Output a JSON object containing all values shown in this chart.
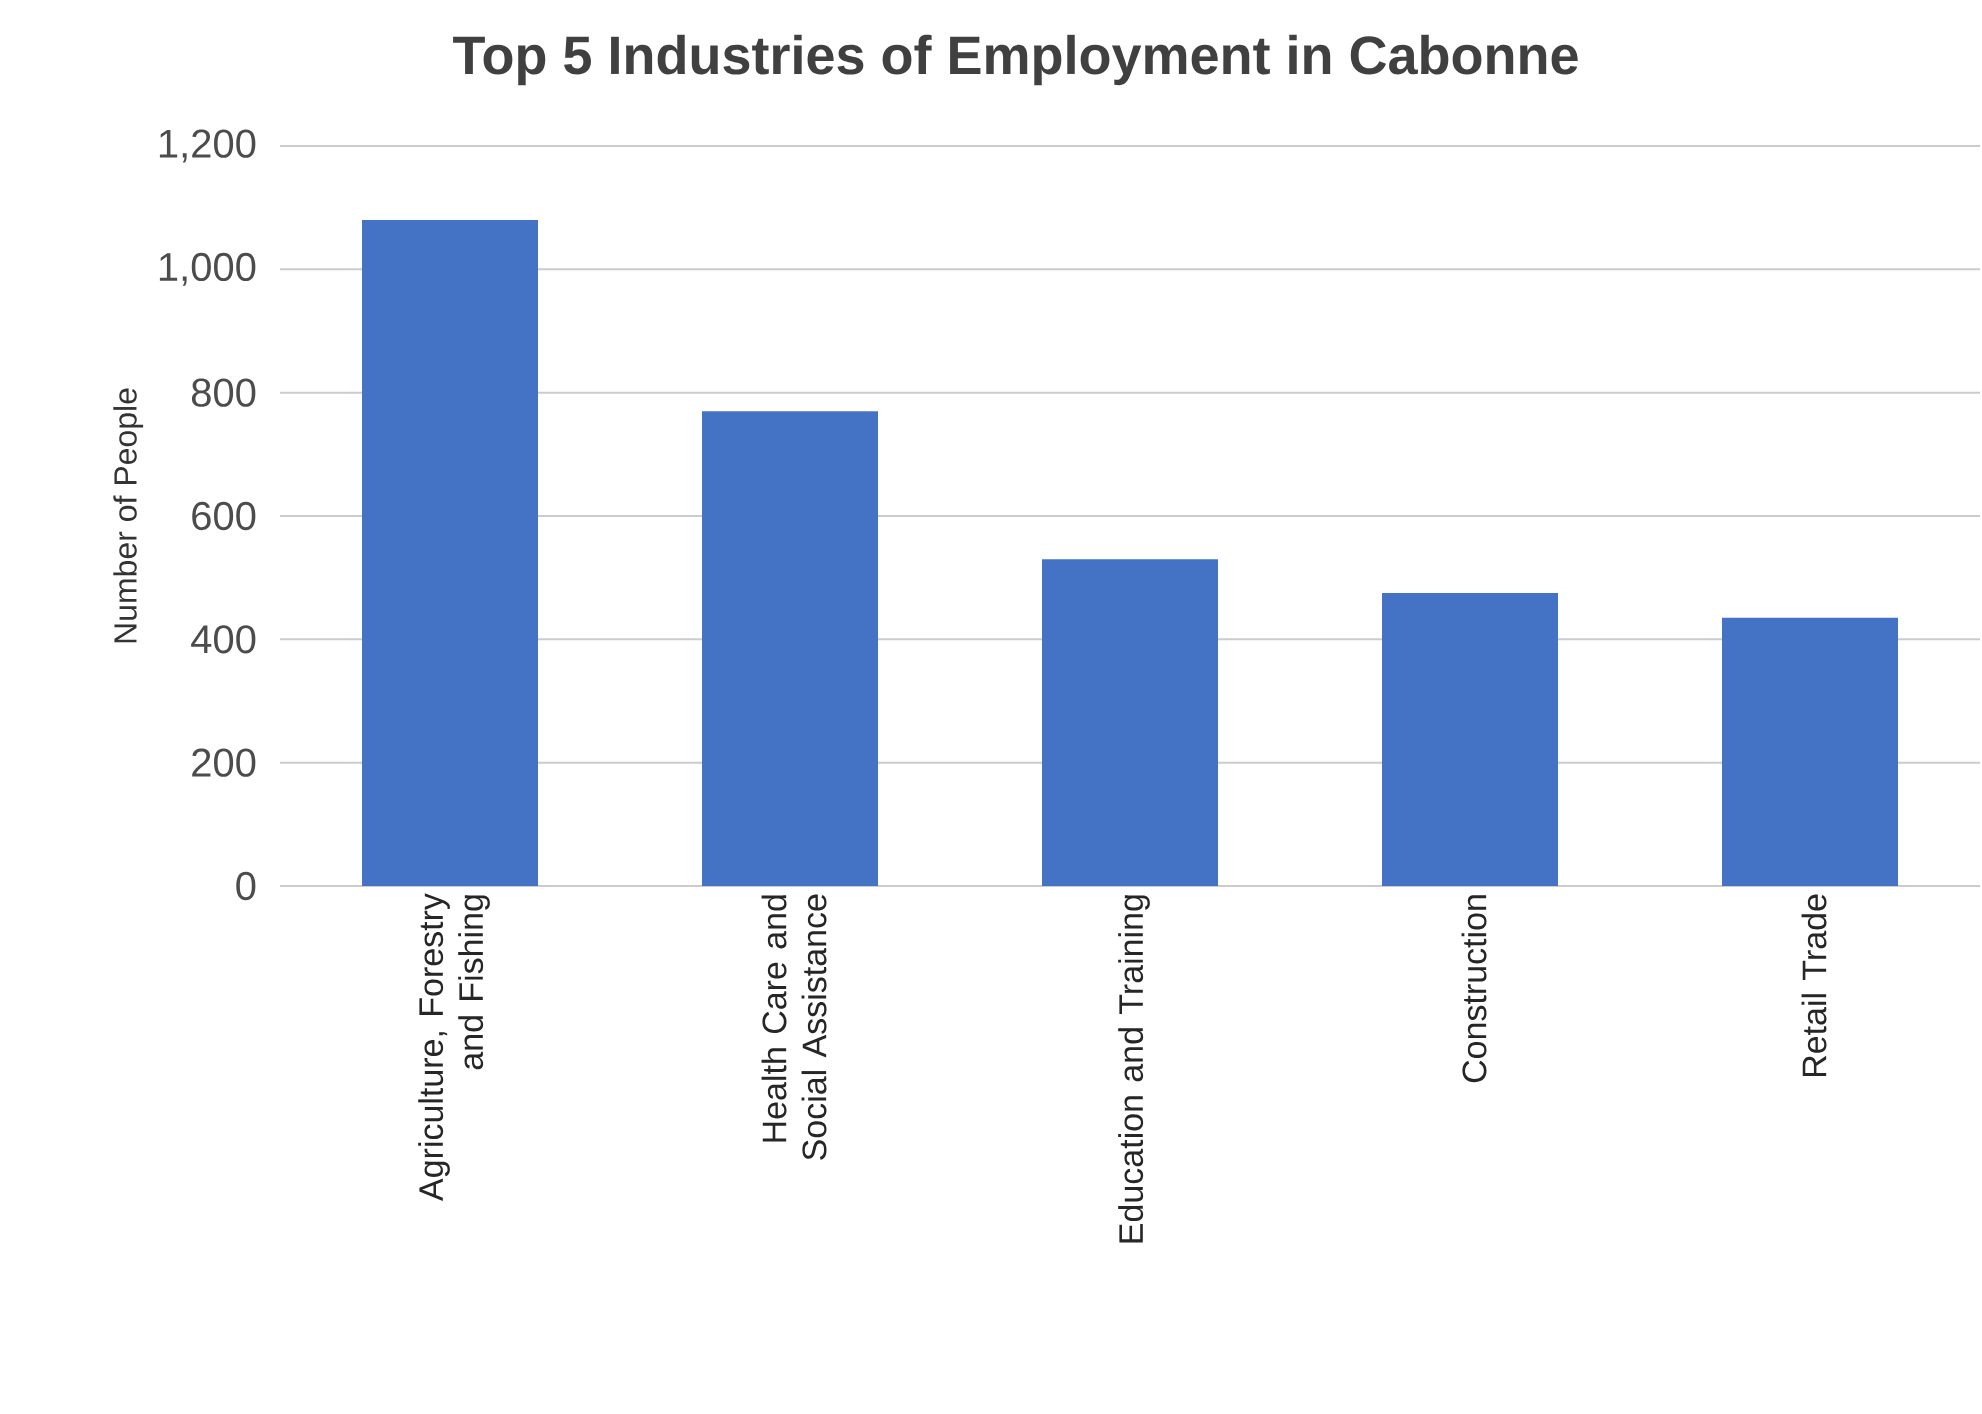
{
  "chart_data": {
    "type": "bar",
    "title": "Top 5 Industries of Employment in Cabonne",
    "ylabel": "Number of People",
    "categories": [
      "Agriculture, Forestry and Fishing",
      "Health Care and Social Assistance",
      "Education and Training",
      "Construction",
      "Retail Trade"
    ],
    "values": [
      1080,
      770,
      530,
      475,
      435
    ],
    "color": "#4472c4",
    "ylim": [
      0,
      1200
    ],
    "yticks": [
      0,
      {
        "value": 200,
        "label": "200"
      },
      {
        "value": 400,
        "label": "400"
      },
      {
        "value": 600,
        "label": "600"
      },
      {
        "value": 800,
        "label": "800"
      },
      {
        "value": 1000,
        "label": "1,000"
      },
      {
        "value": 1200,
        "label": "1,200"
      }
    ],
    "grid": "y"
  }
}
